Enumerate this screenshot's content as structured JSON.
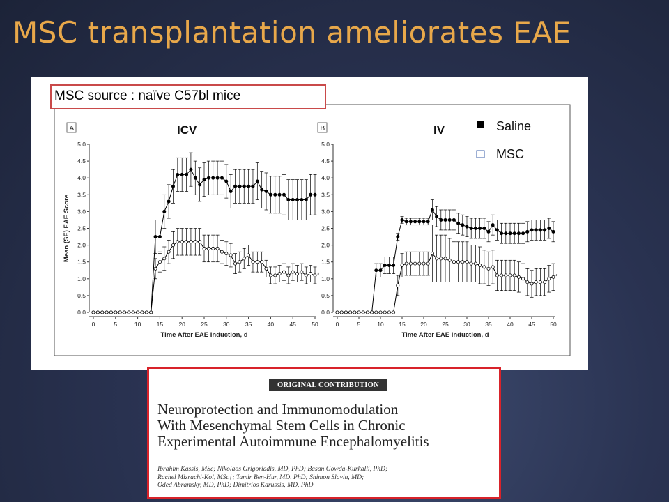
{
  "slide": {
    "title": "MSC transplantation ameliorates EAE",
    "source_label": "MSC source : naïve C57bl mice"
  },
  "legend": [
    {
      "name": "Saline",
      "marker": "filled-square"
    },
    {
      "name": "MSC",
      "marker": "open-square"
    }
  ],
  "colors": {
    "title": "#e8a84a",
    "highlight_border": "#d8232a",
    "series": "#000000"
  },
  "chart_data": [
    {
      "type": "line",
      "panel_label": "A",
      "title": "ICV",
      "xlabel": "Time After EAE Induction, d",
      "ylabel": "Mean (SE) EAE Score",
      "xlim": [
        0,
        50
      ],
      "ylim": [
        0,
        5
      ],
      "xticks": [
        0,
        5,
        10,
        15,
        20,
        25,
        30,
        35,
        40,
        45,
        50
      ],
      "yticks": [
        "0.0",
        "0.5",
        "1.0",
        "1.5",
        "2.0",
        "2.5",
        "3.0",
        "3.5",
        "4.0",
        "4.5",
        "5.0"
      ],
      "annotation": "*",
      "x": [
        0,
        1,
        2,
        3,
        4,
        5,
        6,
        7,
        8,
        9,
        10,
        11,
        12,
        13,
        14,
        15,
        16,
        17,
        18,
        19,
        20,
        21,
        22,
        23,
        24,
        25,
        26,
        27,
        28,
        29,
        30,
        31,
        32,
        33,
        34,
        35,
        36,
        37,
        38,
        39,
        40,
        41,
        42,
        43,
        44,
        45,
        46,
        47,
        48,
        49,
        50
      ],
      "series": [
        {
          "name": "Saline",
          "marker": "filled",
          "values": [
            0,
            0,
            0,
            0,
            0,
            0,
            0,
            0,
            0,
            0,
            0,
            0,
            0,
            0,
            2.25,
            2.25,
            3.0,
            3.3,
            3.75,
            4.1,
            4.1,
            4.1,
            4.25,
            4.0,
            3.8,
            3.95,
            4.0,
            4.0,
            4.0,
            4.0,
            3.9,
            3.6,
            3.75,
            3.75,
            3.75,
            3.75,
            3.75,
            3.9,
            3.65,
            3.6,
            3.5,
            3.5,
            3.5,
            3.5,
            3.35,
            3.35,
            3.35,
            3.35,
            3.35,
            3.5,
            3.5
          ],
          "err": [
            0,
            0,
            0,
            0,
            0,
            0,
            0,
            0,
            0,
            0,
            0,
            0,
            0,
            0,
            0.5,
            0.5,
            0.5,
            0.5,
            0.5,
            0.5,
            0.5,
            0.5,
            0.5,
            0.5,
            0.5,
            0.5,
            0.5,
            0.5,
            0.5,
            0.5,
            0.5,
            0.5,
            0.5,
            0.5,
            0.5,
            0.5,
            0.5,
            0.55,
            0.55,
            0.55,
            0.55,
            0.55,
            0.55,
            0.6,
            0.6,
            0.6,
            0.6,
            0.6,
            0.6,
            0.6,
            0.6
          ]
        },
        {
          "name": "MSC",
          "marker": "open",
          "values": [
            0,
            0,
            0,
            0,
            0,
            0,
            0,
            0,
            0,
            0,
            0,
            0,
            0,
            0,
            1.3,
            1.5,
            1.6,
            1.8,
            2.0,
            2.1,
            2.1,
            2.1,
            2.1,
            2.1,
            2.1,
            1.9,
            1.9,
            1.9,
            1.9,
            1.8,
            1.75,
            1.7,
            1.45,
            1.5,
            1.6,
            1.7,
            1.5,
            1.5,
            1.5,
            1.3,
            1.1,
            1.1,
            1.15,
            1.2,
            1.1,
            1.2,
            1.15,
            1.2,
            1.1,
            1.15,
            1.1
          ],
          "err": [
            0,
            0,
            0,
            0,
            0,
            0,
            0,
            0,
            0,
            0,
            0,
            0,
            0,
            0,
            0.3,
            0.3,
            0.35,
            0.35,
            0.4,
            0.4,
            0.4,
            0.4,
            0.4,
            0.4,
            0.4,
            0.4,
            0.4,
            0.4,
            0.4,
            0.35,
            0.35,
            0.35,
            0.3,
            0.3,
            0.3,
            0.3,
            0.3,
            0.3,
            0.3,
            0.25,
            0.25,
            0.25,
            0.25,
            0.25,
            0.25,
            0.25,
            0.25,
            0.25,
            0.25,
            0.25,
            0.25
          ]
        }
      ]
    },
    {
      "type": "line",
      "panel_label": "B",
      "title": "IV",
      "xlabel": "Time After EAE Induction, d",
      "ylabel": "",
      "xlim": [
        0,
        50
      ],
      "ylim": [
        0,
        5
      ],
      "xticks": [
        0,
        5,
        10,
        15,
        20,
        25,
        30,
        35,
        40,
        45,
        50
      ],
      "yticks": [
        "0.0",
        "0.5",
        "1.0",
        "1.5",
        "2.0",
        "2.5",
        "3.0",
        "3.5",
        "4.0",
        "4.5",
        "5.0"
      ],
      "annotation": "*",
      "x": [
        0,
        1,
        2,
        3,
        4,
        5,
        6,
        7,
        8,
        9,
        10,
        11,
        12,
        13,
        14,
        15,
        16,
        17,
        18,
        19,
        20,
        21,
        22,
        23,
        24,
        25,
        26,
        27,
        28,
        29,
        30,
        31,
        32,
        33,
        34,
        35,
        36,
        37,
        38,
        39,
        40,
        41,
        42,
        43,
        44,
        45,
        46,
        47,
        48,
        49,
        50
      ],
      "series": [
        {
          "name": "Saline",
          "marker": "filled",
          "values": [
            0,
            0,
            0,
            0,
            0,
            0,
            0,
            0,
            0,
            1.25,
            1.25,
            1.4,
            1.4,
            1.4,
            2.25,
            2.75,
            2.7,
            2.7,
            2.7,
            2.7,
            2.7,
            2.7,
            3.05,
            2.85,
            2.75,
            2.75,
            2.75,
            2.75,
            2.65,
            2.6,
            2.55,
            2.5,
            2.5,
            2.5,
            2.5,
            2.4,
            2.6,
            2.45,
            2.35,
            2.35,
            2.35,
            2.35,
            2.35,
            2.35,
            2.4,
            2.45,
            2.45,
            2.45,
            2.45,
            2.5,
            2.4
          ],
          "err": [
            0,
            0,
            0,
            0,
            0,
            0,
            0,
            0,
            0,
            0.2,
            0.2,
            0.25,
            0.25,
            0.25,
            0.1,
            0.1,
            0.1,
            0.1,
            0.1,
            0.1,
            0.1,
            0.1,
            0.3,
            0.3,
            0.3,
            0.3,
            0.3,
            0.3,
            0.3,
            0.3,
            0.3,
            0.3,
            0.3,
            0.3,
            0.3,
            0.3,
            0.3,
            0.3,
            0.3,
            0.3,
            0.3,
            0.3,
            0.3,
            0.3,
            0.3,
            0.3,
            0.3,
            0.3,
            0.3,
            0.3,
            0.3
          ]
        },
        {
          "name": "MSC",
          "marker": "open",
          "values": [
            0,
            0,
            0,
            0,
            0,
            0,
            0,
            0,
            0,
            0,
            0,
            0,
            0,
            0,
            0.8,
            1.4,
            1.45,
            1.45,
            1.45,
            1.45,
            1.45,
            1.45,
            1.75,
            1.6,
            1.6,
            1.6,
            1.55,
            1.5,
            1.5,
            1.5,
            1.5,
            1.45,
            1.45,
            1.4,
            1.35,
            1.3,
            1.35,
            1.1,
            1.1,
            1.1,
            1.1,
            1.1,
            1.05,
            1.0,
            0.9,
            0.85,
            0.9,
            0.9,
            0.9,
            1.0,
            1.05
          ],
          "err": [
            0,
            0,
            0,
            0,
            0,
            0,
            0,
            0,
            0,
            0,
            0,
            0,
            0,
            0,
            0.3,
            0.35,
            0.35,
            0.35,
            0.35,
            0.35,
            0.35,
            0.35,
            0.85,
            0.7,
            0.7,
            0.7,
            0.65,
            0.6,
            0.6,
            0.6,
            0.6,
            0.55,
            0.55,
            0.55,
            0.5,
            0.5,
            0.5,
            0.45,
            0.45,
            0.45,
            0.45,
            0.45,
            0.45,
            0.45,
            0.4,
            0.4,
            0.4,
            0.4,
            0.4,
            0.4,
            0.4
          ]
        }
      ]
    }
  ],
  "article": {
    "badge": "ORIGINAL CONTRIBUTION",
    "title_lines": [
      "Neuroprotection and Immunomodulation",
      "With Mesenchymal Stem Cells in Chronic",
      "Experimental Autoimmune Encephalomyelitis"
    ],
    "author_lines": [
      "Ibrahim Kassis, MSc; Nikolaos Grigoriadis, MD, PhD; Basan Gowda-Kurkalli, PhD;",
      "Rachel Mizrachi-Kol, MSc†; Tamir Ben-Hur, MD, PhD; Shimon Slavin, MD;",
      "Oded Abramsky, MD, PhD; Dimitrios Karussis, MD, PhD"
    ]
  }
}
